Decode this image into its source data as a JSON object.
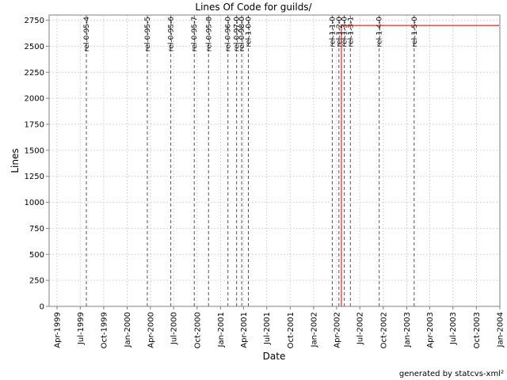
{
  "chart_data": {
    "type": "line",
    "title": "Lines Of Code for guilds/",
    "xlabel": "Date",
    "ylabel": "Lines",
    "ylim": [
      0,
      2800
    ],
    "xlim": [
      "1999-03-01",
      "2004-01-01"
    ],
    "grid": true,
    "y_ticks": [
      0,
      250,
      500,
      750,
      1000,
      1250,
      1500,
      1750,
      2000,
      2250,
      2500,
      2750
    ],
    "x_ticks": [
      {
        "date": "1999-04-01",
        "label": "Apr-1999"
      },
      {
        "date": "1999-07-01",
        "label": "Jul-1999"
      },
      {
        "date": "1999-10-01",
        "label": "Oct-1999"
      },
      {
        "date": "2000-01-01",
        "label": "Jan-2000"
      },
      {
        "date": "2000-04-01",
        "label": "Apr-2000"
      },
      {
        "date": "2000-07-01",
        "label": "Jul-2000"
      },
      {
        "date": "2000-10-01",
        "label": "Oct-2000"
      },
      {
        "date": "2001-01-01",
        "label": "Jan-2001"
      },
      {
        "date": "2001-04-01",
        "label": "Apr-2001"
      },
      {
        "date": "2001-07-01",
        "label": "Jul-2001"
      },
      {
        "date": "2001-10-01",
        "label": "Oct-2001"
      },
      {
        "date": "2002-01-01",
        "label": "Jan-2002"
      },
      {
        "date": "2002-04-01",
        "label": "Apr-2002"
      },
      {
        "date": "2002-07-01",
        "label": "Jul-2002"
      },
      {
        "date": "2002-10-01",
        "label": "Oct-2002"
      },
      {
        "date": "2003-01-01",
        "label": "Jan-2003"
      },
      {
        "date": "2003-04-01",
        "label": "Apr-2003"
      },
      {
        "date": "2003-07-01",
        "label": "Jul-2003"
      },
      {
        "date": "2003-10-01",
        "label": "Oct-2003"
      },
      {
        "date": "2004-01-01",
        "label": "Jan-2004"
      }
    ],
    "series": [
      {
        "color": "#cc0000",
        "points": [
          {
            "x": "1999-04-01",
            "y": 0
          },
          {
            "x": "2002-04-20",
            "y": 0
          },
          {
            "x": "2002-04-20",
            "y": 2700
          },
          {
            "x": "2003-12-26",
            "y": 2700
          }
        ]
      }
    ],
    "releases": [
      {
        "date": "1999-07-25",
        "label": "rel-0-95-4"
      },
      {
        "date": "2000-03-20",
        "label": "rel-0-95-5"
      },
      {
        "date": "2000-06-20",
        "label": "rel-0-95-6"
      },
      {
        "date": "2000-09-20",
        "label": "rel-0-95-7"
      },
      {
        "date": "2000-11-15",
        "label": "rel-0-95-8"
      },
      {
        "date": "2001-01-30",
        "label": "rel-0-96-0"
      },
      {
        "date": "2001-03-05",
        "label": "rel-0-97-0"
      },
      {
        "date": "2001-03-25",
        "label": "rel-0-98-0"
      },
      {
        "date": "2001-04-20",
        "label": "rel-1-0-0"
      },
      {
        "date": "2002-03-15",
        "label": "rel-1-1-0"
      },
      {
        "date": "2002-04-10",
        "label": "rel-1-2-0"
      },
      {
        "date": "2002-05-01",
        "label": "rel-1-3-0"
      },
      {
        "date": "2002-05-25",
        "label": "rel-1-3-1"
      },
      {
        "date": "2002-09-15",
        "label": "rel-1-4-0"
      },
      {
        "date": "2003-01-30",
        "label": "rel-1-5-0"
      }
    ]
  },
  "footer": "generated by statcvs-xml²"
}
